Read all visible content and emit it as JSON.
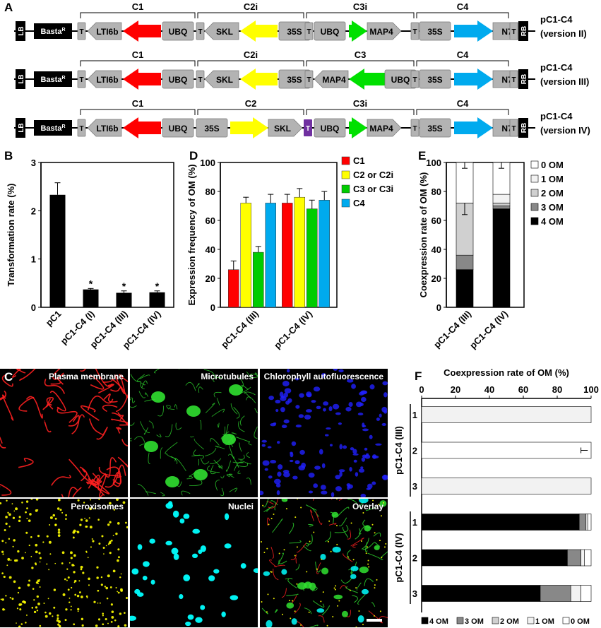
{
  "panel_letters": {
    "a": "A",
    "b": "B",
    "c": "C",
    "d": "D",
    "e": "E",
    "f": "F"
  },
  "constructs": [
    {
      "name": "pC1-C4",
      "version": "(version II)",
      "units": [
        {
          "label": "C1"
        },
        {
          "label": "C2i"
        },
        {
          "label": "C3i"
        },
        {
          "label": "C4"
        }
      ]
    },
    {
      "name": "pC1-C4",
      "version": "(version III)",
      "units": [
        {
          "label": "C1"
        },
        {
          "label": "C2i"
        },
        {
          "label": "C3"
        },
        {
          "label": "C4"
        }
      ]
    },
    {
      "name": "pC1-C4",
      "version": "(version IV)",
      "units": [
        {
          "label": "C1"
        },
        {
          "label": "C2"
        },
        {
          "label": "C3i"
        },
        {
          "label": "C4"
        }
      ]
    }
  ],
  "elements": {
    "lb": "LB",
    "rb": "RB",
    "basta": "Basta",
    "basta_sup": "R",
    "t": "T",
    "lti6b": "LTI6b",
    "ubq": "UBQ",
    "skl": "SKL",
    "p35s": "35S",
    "map4": "MAP4",
    "n7": "N7"
  },
  "colors": {
    "c1": "#ff0000",
    "c2": "#ffff00",
    "c3": "#00e000",
    "c4": "#00aaee",
    "t_purple": "#7030a0",
    "gray": "#b3b3b3"
  },
  "chart_data": [
    {
      "panel": "B",
      "type": "bar",
      "categories": [
        "pC1",
        "pC1-C4 (I)",
        "pC1-C4 (III)",
        "pC1-C4 (IV)"
      ],
      "values": [
        2.33,
        0.37,
        0.3,
        0.31
      ],
      "errors": [
        0.25,
        0.02,
        0.04,
        0.03
      ],
      "significance": [
        "",
        "*",
        "*",
        "*"
      ],
      "ylabel": "Transformation rate (%)",
      "ylim": [
        0,
        3
      ],
      "yticks": [
        "0",
        "1",
        "2",
        "3"
      ]
    },
    {
      "panel": "D",
      "type": "bar",
      "categories": [
        "pC1-C4 (III)",
        "pC1-C4 (IV)"
      ],
      "series": [
        {
          "name": "C1",
          "color": "#ff0000",
          "values": [
            26,
            72
          ],
          "errors": [
            6,
            6
          ]
        },
        {
          "name": "C2 or C2i",
          "color": "#ffff00",
          "values": [
            72,
            76
          ],
          "errors": [
            4,
            6
          ]
        },
        {
          "name": "C3 or C3i",
          "color": "#00cc00",
          "values": [
            38,
            68
          ],
          "errors": [
            4,
            6
          ]
        },
        {
          "name": "C4",
          "color": "#00aaee",
          "values": [
            72,
            74
          ],
          "errors": [
            6,
            6
          ]
        }
      ],
      "ylabel": "Expression frequency of OM (%)",
      "ylim": [
        0,
        100
      ],
      "yticks": [
        "0",
        "20",
        "40",
        "60",
        "80",
        "100"
      ]
    },
    {
      "panel": "E",
      "type": "bar",
      "stacked": true,
      "categories": [
        "pC1-C4 (III)",
        "pC1-C4 (IV)"
      ],
      "series": [
        {
          "name": "4 OM",
          "color": "#000000",
          "values": [
            26,
            68
          ],
          "errors": [
            6,
            6
          ]
        },
        {
          "name": "3 OM",
          "color": "#888888",
          "values": [
            10,
            2
          ],
          "errors": [
            0,
            0
          ]
        },
        {
          "name": "2 OM",
          "color": "#d0d0d0",
          "values": [
            36,
            2
          ],
          "errors": [
            8,
            0
          ]
        },
        {
          "name": "1 OM",
          "color": "#f2f2f2",
          "values": [
            0,
            6
          ],
          "errors": [
            0,
            0
          ]
        },
        {
          "name": "0 OM",
          "color": "#ffffff",
          "values": [
            28,
            22
          ],
          "errors": [
            4,
            4
          ]
        }
      ],
      "ylabel": "Coexpression rate of OM (%)",
      "ylim": [
        0,
        100
      ],
      "yticks": [
        "0",
        "20",
        "40",
        "60",
        "80",
        "100"
      ]
    },
    {
      "panel": "F",
      "type": "bar",
      "orientation": "horizontal",
      "stacked": true,
      "groups": [
        {
          "name": "pC1-C4 (III)",
          "rows": [
            {
              "label": "1",
              "values": [
                0,
                0,
                0,
                100,
                0
              ]
            },
            {
              "label": "2",
              "values": [
                0,
                0,
                0,
                0,
                100
              ],
              "err": 2
            },
            {
              "label": "3",
              "values": [
                0,
                0,
                0,
                100,
                0
              ]
            }
          ]
        },
        {
          "name": "pC1-C4 (IV)",
          "rows": [
            {
              "label": "1",
              "values": [
                93,
                4,
                0,
                1,
                2
              ],
              "err": 3
            },
            {
              "label": "2",
              "values": [
                86,
                8,
                0,
                2,
                4
              ],
              "err": 6
            },
            {
              "label": "3",
              "values": [
                70,
                18,
                0,
                6,
                6
              ],
              "err": 7
            }
          ]
        }
      ],
      "series": [
        {
          "name": "4 OM",
          "color": "#000000"
        },
        {
          "name": "3 OM",
          "color": "#888888"
        },
        {
          "name": "2 OM",
          "color": "#d0d0d0"
        },
        {
          "name": "1 OM",
          "color": "#f2f2f2"
        },
        {
          "name": "0 OM",
          "color": "#ffffff"
        }
      ],
      "xlabel": "Coexpression rate of OM (%)",
      "xlim": [
        0,
        100
      ],
      "xticks": [
        "0",
        "20",
        "40",
        "60",
        "80",
        "100"
      ]
    }
  ],
  "microscopy": {
    "labels": [
      "Plasma membrane",
      "Microtubules",
      "Chlorophyll autofluorescence",
      "Peroxisomes",
      "Nuclei",
      "Overlay"
    ],
    "colors": [
      "#ff2020",
      "#30e030",
      "#2020ff",
      "#ffff00",
      "#00ffff",
      "#40ff40"
    ]
  }
}
